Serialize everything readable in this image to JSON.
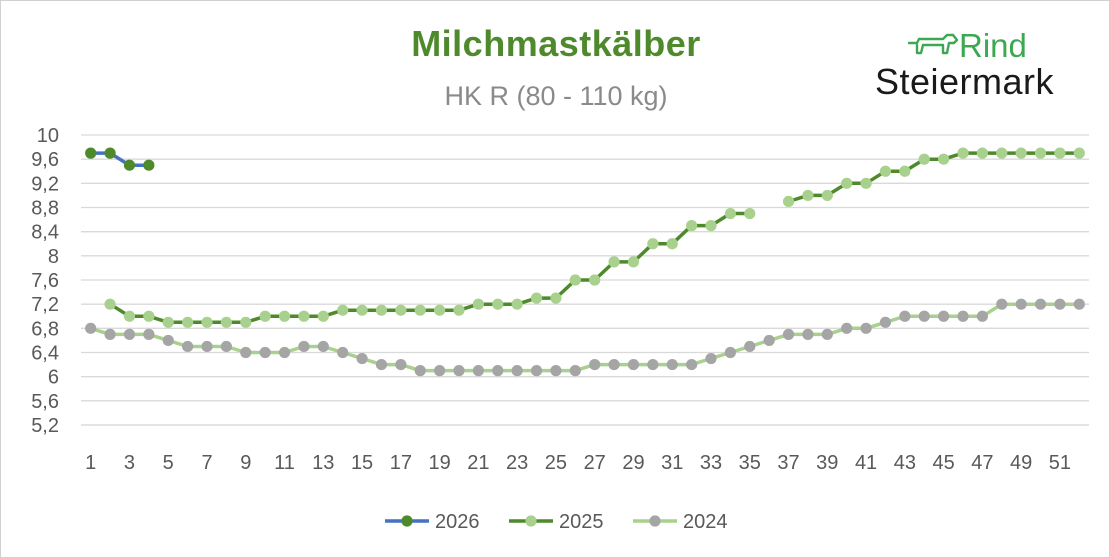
{
  "header": {
    "title": "Milchmastkälber",
    "subtitle": "HK R (80 - 110 kg)"
  },
  "logo": {
    "word_top": "Rind",
    "word_bottom": "Steiermark",
    "icon": "calf-outline-icon",
    "color": "#3da852"
  },
  "chart_data": {
    "type": "line",
    "title": "Milchmastkälber",
    "subtitle": "HK R (80 - 110 kg)",
    "xlabel": "",
    "ylabel": "",
    "xlim": [
      1,
      52
    ],
    "ylim": [
      5.2,
      10
    ],
    "y_ticks": [
      "10",
      "9,6",
      "9,2",
      "8,8",
      "8,4",
      "8",
      "7,6",
      "7,2",
      "6,8",
      "6,4",
      "6",
      "5,6",
      "5,2"
    ],
    "y_tick_values": [
      10,
      9.6,
      9.2,
      8.8,
      8.4,
      8.0,
      7.6,
      7.2,
      6.8,
      6.4,
      6.0,
      5.6,
      5.2
    ],
    "x_ticks": [
      "1",
      "3",
      "5",
      "7",
      "9",
      "11",
      "13",
      "15",
      "17",
      "19",
      "21",
      "23",
      "25",
      "27",
      "29",
      "31",
      "33",
      "35",
      "37",
      "39",
      "41",
      "43",
      "45",
      "47",
      "49",
      "51"
    ],
    "x_tick_values": [
      1,
      3,
      5,
      7,
      9,
      11,
      13,
      15,
      17,
      19,
      21,
      23,
      25,
      27,
      29,
      31,
      33,
      35,
      37,
      39,
      41,
      43,
      45,
      47,
      49,
      51
    ],
    "grid": "horizontal",
    "legend_position": "bottom",
    "series": [
      {
        "name": "2026",
        "line_color": "#4472c4",
        "marker_color": "#4e8a2c",
        "x": [
          1,
          2,
          3,
          4
        ],
        "y": [
          9.7,
          9.7,
          9.5,
          9.5
        ]
      },
      {
        "name": "2025",
        "line_color": "#4e8a2c",
        "marker_color": "#a9d18e",
        "x": [
          2,
          3,
          4,
          5,
          6,
          7,
          8,
          9,
          10,
          11,
          12,
          13,
          14,
          15,
          16,
          17,
          18,
          19,
          20,
          21,
          22,
          23,
          24,
          25,
          26,
          27,
          28,
          29,
          30,
          31,
          32,
          33,
          34,
          35,
          37,
          38,
          39,
          40,
          41,
          42,
          43,
          44,
          45,
          46,
          47,
          48,
          49,
          50,
          51,
          52
        ],
        "y": [
          7.2,
          7.0,
          7.0,
          6.9,
          6.9,
          6.9,
          6.9,
          6.9,
          7.0,
          7.0,
          7.0,
          7.0,
          7.1,
          7.1,
          7.1,
          7.1,
          7.1,
          7.1,
          7.1,
          7.2,
          7.2,
          7.2,
          7.3,
          7.3,
          7.6,
          7.6,
          7.9,
          7.9,
          8.2,
          8.2,
          8.5,
          8.5,
          8.7,
          8.7,
          8.9,
          9.0,
          9.0,
          9.2,
          9.2,
          9.4,
          9.4,
          9.6,
          9.6,
          9.7,
          9.7,
          9.7,
          9.7,
          9.7,
          9.7,
          9.7
        ],
        "segments": [
          [
            2,
            35
          ],
          [
            37,
            52
          ]
        ]
      },
      {
        "name": "2024",
        "line_color": "#a9d18e",
        "marker_color": "#a5a5a5",
        "x": [
          1,
          2,
          3,
          4,
          5,
          6,
          7,
          8,
          9,
          10,
          11,
          12,
          13,
          14,
          15,
          16,
          17,
          18,
          19,
          20,
          21,
          22,
          23,
          24,
          25,
          26,
          27,
          28,
          29,
          30,
          31,
          32,
          33,
          34,
          35,
          36,
          37,
          38,
          39,
          40,
          41,
          42,
          43,
          44,
          45,
          46,
          47,
          48,
          49,
          50,
          51,
          52
        ],
        "y": [
          6.8,
          6.7,
          6.7,
          6.7,
          6.6,
          6.5,
          6.5,
          6.5,
          6.4,
          6.4,
          6.4,
          6.5,
          6.5,
          6.4,
          6.3,
          6.2,
          6.2,
          6.1,
          6.1,
          6.1,
          6.1,
          6.1,
          6.1,
          6.1,
          6.1,
          6.1,
          6.2,
          6.2,
          6.2,
          6.2,
          6.2,
          6.2,
          6.3,
          6.4,
          6.5,
          6.6,
          6.7,
          6.7,
          6.7,
          6.8,
          6.8,
          6.9,
          7.0,
          7.0,
          7.0,
          7.0,
          7.0,
          7.2,
          7.2,
          7.2,
          7.2,
          7.2
        ],
        "segments": [
          [
            1,
            52
          ]
        ]
      }
    ]
  }
}
